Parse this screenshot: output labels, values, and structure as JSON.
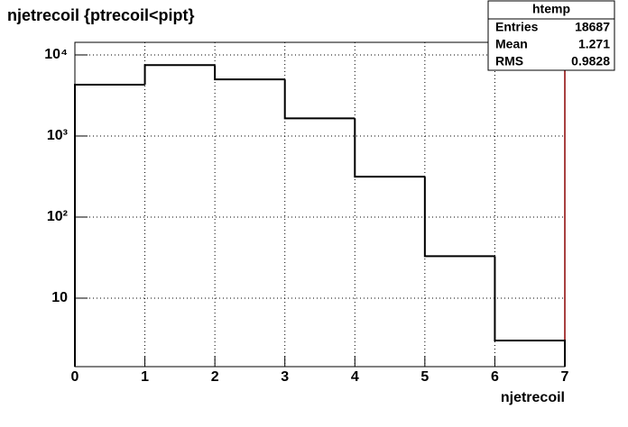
{
  "chart_data": {
    "type": "histogram",
    "title": "njetrecoil {ptrecoil<pipt}",
    "x_label": "njetrecoil",
    "bins": [
      0,
      1,
      2,
      3,
      4,
      5,
      6,
      7
    ],
    "values": [
      4300,
      7500,
      5000,
      1650,
      315,
      33,
      3
    ],
    "color": "#000000",
    "xlim": [
      0,
      7
    ],
    "xticks": [
      0,
      1,
      2,
      3,
      4,
      5,
      6,
      7
    ],
    "ylim": [
      1.43,
      14300
    ],
    "log_y": true,
    "yticks": [
      10,
      {
        "value": 100,
        "label": "10²"
      },
      {
        "value": 1000,
        "label": "10³"
      },
      {
        "value": 10000,
        "label": "10⁴"
      }
    ],
    "grid": true,
    "stats": {
      "title": "htemp",
      "rows": [
        [
          "Entries",
          "18687"
        ],
        [
          "Mean",
          "1.271"
        ],
        [
          "RMS",
          "0.9828"
        ]
      ]
    }
  }
}
